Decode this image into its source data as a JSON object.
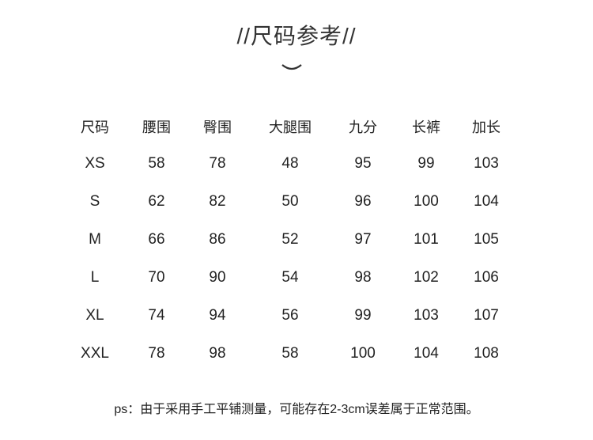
{
  "title": "//尺码参考//",
  "decoration_icon": "chevron-down-icon",
  "table": {
    "headers": [
      "尺码",
      "腰围",
      "臀围",
      "大腿围",
      "九分",
      "长裤",
      "加长"
    ],
    "rows": [
      [
        "XS",
        "58",
        "78",
        "48",
        "95",
        "99",
        "103"
      ],
      [
        "S",
        "62",
        "82",
        "50",
        "96",
        "100",
        "104"
      ],
      [
        "M",
        "66",
        "86",
        "52",
        "97",
        "101",
        "105"
      ],
      [
        "L",
        "70",
        "90",
        "54",
        "98",
        "102",
        "106"
      ],
      [
        "XL",
        "74",
        "94",
        "56",
        "99",
        "103",
        "107"
      ],
      [
        "XXL",
        "78",
        "98",
        "58",
        "100",
        "104",
        "108"
      ]
    ]
  },
  "note": "ps：由于采用手工平铺测量，可能存在2-3cm误差属于正常范围。"
}
